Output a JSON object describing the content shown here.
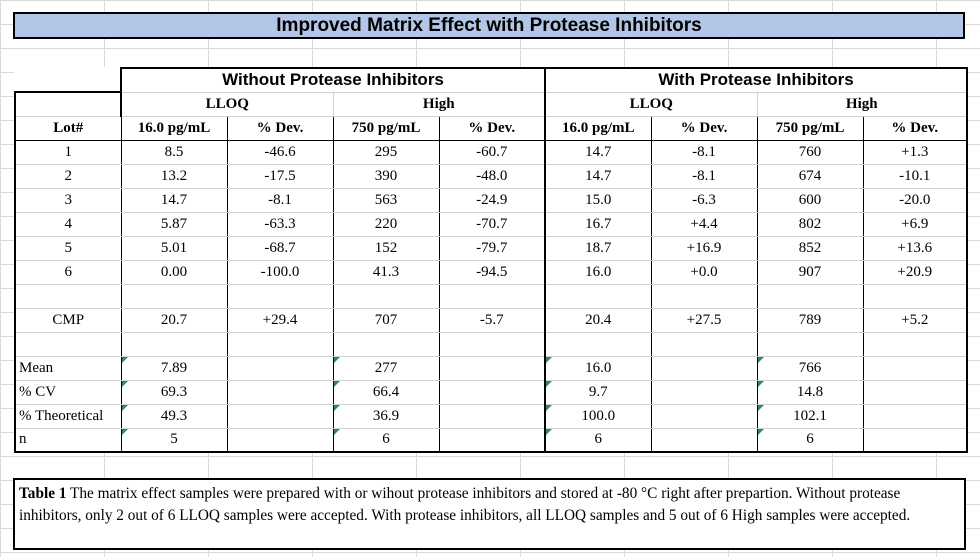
{
  "title": "Improved Matrix Effect with Protease Inhibitors",
  "groups": {
    "without": "Without Protease Inhibitors",
    "with": "With Protease Inhibitors"
  },
  "levels": {
    "lloq": "LLOQ",
    "high": "High"
  },
  "columns": {
    "lot": "Lot#",
    "lloq_conc": "16.0 pg/mL",
    "dev": "% Dev.",
    "high_conc": "750 pg/mL"
  },
  "rows": [
    {
      "lot": "1",
      "cells": [
        "8.5",
        "-46.6",
        "295",
        "-60.7",
        "14.7",
        "-8.1",
        "760",
        "+1.3"
      ]
    },
    {
      "lot": "2",
      "cells": [
        "13.2",
        "-17.5",
        "390",
        "-48.0",
        "14.7",
        "-8.1",
        "674",
        "-10.1"
      ]
    },
    {
      "lot": "3",
      "cells": [
        "14.7",
        "-8.1",
        "563",
        "-24.9",
        "15.0",
        "-6.3",
        "600",
        "-20.0"
      ]
    },
    {
      "lot": "4",
      "cells": [
        "5.87",
        "-63.3",
        "220",
        "-70.7",
        "16.7",
        "+4.4",
        "802",
        "+6.9"
      ]
    },
    {
      "lot": "5",
      "cells": [
        "5.01",
        "-68.7",
        "152",
        "-79.7",
        "18.7",
        "+16.9",
        "852",
        "+13.6"
      ]
    },
    {
      "lot": "6",
      "cells": [
        "0.00",
        "-100.0",
        "41.3",
        "-94.5",
        "16.0",
        "+0.0",
        "907",
        "+20.9"
      ]
    }
  ],
  "cmp": {
    "label": "CMP",
    "cells": [
      "20.7",
      "+29.4",
      "707",
      "-5.7",
      "20.4",
      "+27.5",
      "789",
      "+5.2"
    ]
  },
  "stats": [
    {
      "label": "Mean",
      "cells": [
        "7.89",
        "",
        "277",
        "",
        "16.0",
        "",
        "766",
        ""
      ]
    },
    {
      "label": "% CV",
      "cells": [
        "69.3",
        "",
        "66.4",
        "",
        "9.7",
        "",
        "14.8",
        ""
      ]
    },
    {
      "label": "% Theoretical",
      "cells": [
        "49.3",
        "",
        "36.9",
        "",
        "100.0",
        "",
        "102.1",
        ""
      ]
    },
    {
      "label": "n",
      "cells": [
        "5",
        "",
        "6",
        "",
        "6",
        "",
        "6",
        ""
      ]
    }
  ],
  "caption": {
    "lead": "Table 1",
    "text": " The matrix effect samples were prepared with or wihout protease inhibitors and stored at -80 °C right after prepartion. Without protease inhibitors, only 2 out of 6 LLOQ samples were accepted. With protease inhibitors, all LLOQ samples and 5 out of 6 High samples were accepted."
  },
  "colors": {
    "title_fill": "#b4c6e7",
    "marker": "#2e8b57"
  }
}
